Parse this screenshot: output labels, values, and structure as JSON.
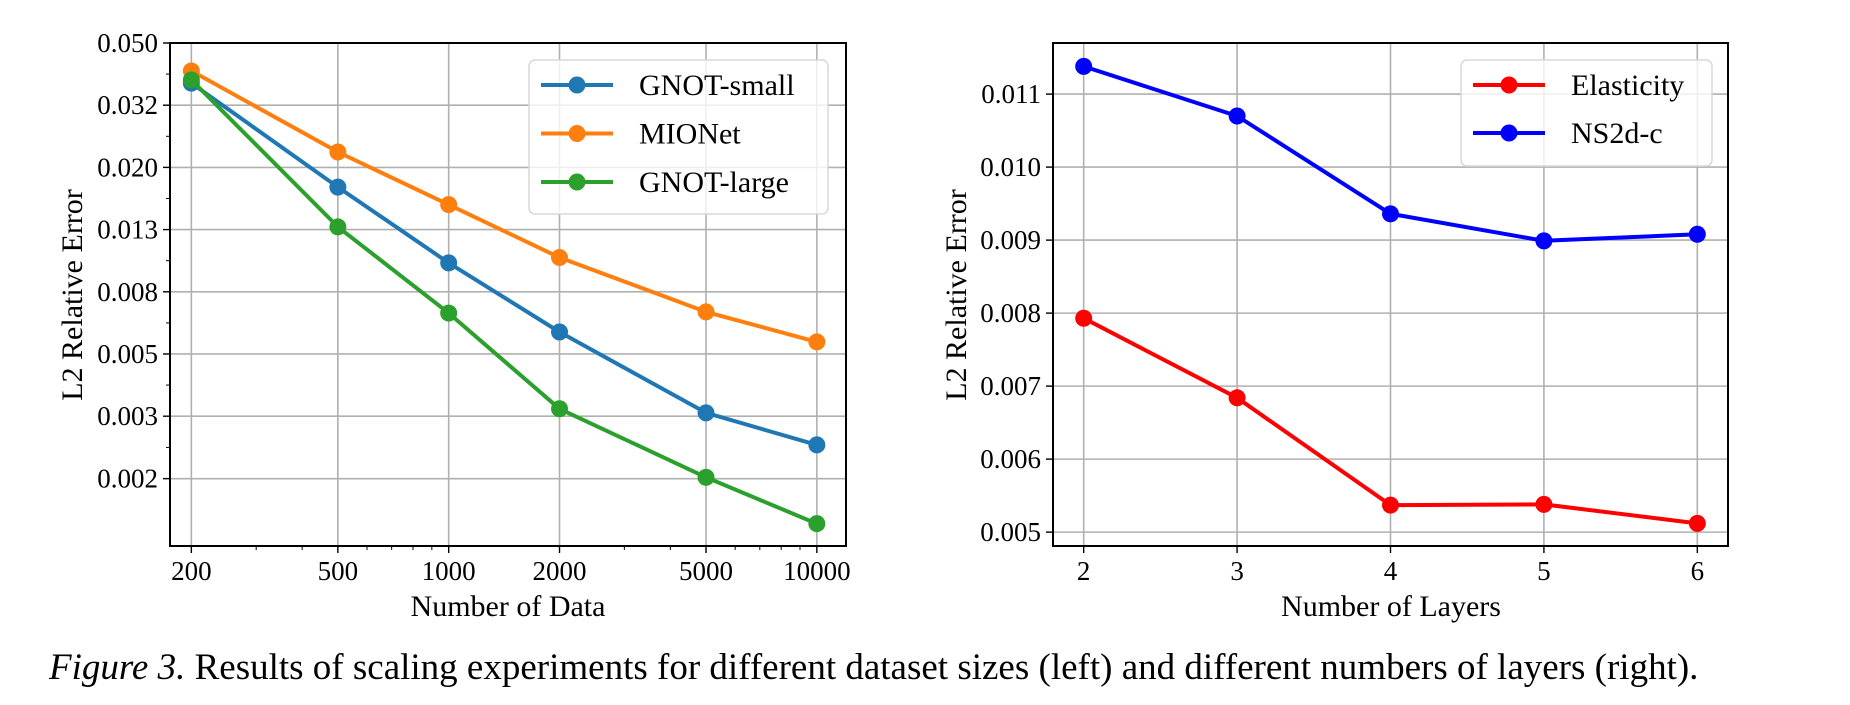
{
  "figure": {
    "caption_label": "Figure 3.",
    "caption_text": " Results of scaling experiments for different dataset sizes (left) and different numbers of layers (right)."
  },
  "chart_data": [
    {
      "type": "line",
      "title": "",
      "xlabel": "Number of Data",
      "ylabel": "L2 Relative Error",
      "xscale": "log",
      "yscale": "log",
      "x": [
        200,
        500,
        1000,
        2000,
        5000,
        10000
      ],
      "xticks": [
        200,
        500,
        1000,
        2000,
        5000,
        10000
      ],
      "xtick_labels": [
        "200",
        "500",
        "1000",
        "2000",
        "5000",
        "10000"
      ],
      "xminor_ticks": [
        300,
        400,
        600,
        700,
        800,
        900,
        3000,
        4000,
        6000,
        7000,
        8000,
        9000
      ],
      "yticks": [
        0.05,
        0.03162,
        0.02,
        0.01265,
        0.008,
        0.00506,
        0.0032,
        0.00202
      ],
      "ytick_labels": [
        "0.050",
        "0.032",
        "0.020",
        "0.013",
        "0.008",
        "0.005",
        "0.003",
        "0.002"
      ],
      "xlim": [
        175,
        12000
      ],
      "ylim": [
        0.00123,
        0.05
      ],
      "grid": true,
      "legend_position": "top-right",
      "series": [
        {
          "name": "GNOT-small",
          "color": "#1f77b4",
          "values": [
            0.0372,
            0.0173,
            0.0099,
            0.00595,
            0.00328,
            0.00259
          ]
        },
        {
          "name": "MIONet",
          "color": "#ff7f0e",
          "values": [
            0.0407,
            0.0224,
            0.0152,
            0.0103,
            0.0069,
            0.00553
          ]
        },
        {
          "name": "GNOT-large",
          "color": "#2ca02c",
          "values": [
            0.0381,
            0.0129,
            0.00684,
            0.00338,
            0.00204,
            0.00145
          ]
        }
      ]
    },
    {
      "type": "line",
      "title": "",
      "xlabel": "Number of Layers",
      "ylabel": "L2 Relative Error",
      "xscale": "linear",
      "yscale": "linear",
      "x": [
        2,
        3,
        4,
        5,
        6
      ],
      "xticks": [
        2,
        3,
        4,
        5,
        6
      ],
      "xtick_labels": [
        "2",
        "3",
        "4",
        "5",
        "6"
      ],
      "yticks": [
        0.005,
        0.006,
        0.007,
        0.008,
        0.009,
        0.01,
        0.011
      ],
      "ytick_labels": [
        "0.005",
        "0.006",
        "0.007",
        "0.008",
        "0.009",
        "0.010",
        "0.011"
      ],
      "xlim": [
        1.8,
        6.2
      ],
      "ylim": [
        0.00481,
        0.0117
      ],
      "grid": true,
      "legend_position": "top-right",
      "series": [
        {
          "name": "Elasticity",
          "color": "#ff0000",
          "values": [
            0.00793,
            0.00684,
            0.00537,
            0.00538,
            0.00512
          ]
        },
        {
          "name": "NS2d-c",
          "color": "#0000ff",
          "values": [
            0.01138,
            0.0107,
            0.00936,
            0.00899,
            0.00908
          ]
        }
      ]
    }
  ]
}
